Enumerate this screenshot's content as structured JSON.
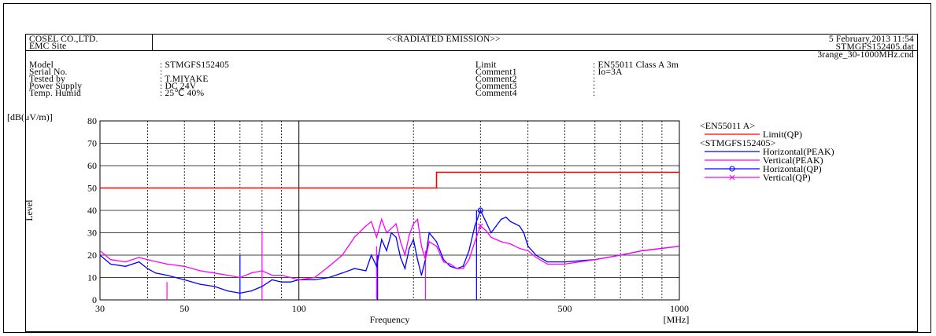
{
  "header": {
    "company": "COSEL CO.,LTD.",
    "site": "EMC Site",
    "title": "<<RADIATED EMISSION>>",
    "datetime": "5 February,2013 11:54",
    "datafile": "STMGFS152405.dat",
    "condfile": "3range_30-1000MHz.cnd"
  },
  "info_left": [
    {
      "label": "Model",
      "value": ": STMGFS152405"
    },
    {
      "label": "Serial No.",
      "value": ":"
    },
    {
      "label": "Tested by",
      "value": ": T.MIYAKE"
    },
    {
      "label": "Power Supply",
      "value": ": DC 24V"
    },
    {
      "label": "Temp. Humid",
      "value": ": 25℃ 40%"
    }
  ],
  "info_right": [
    {
      "label": "Limit",
      "value": ": EN55011 Class A 3m"
    },
    {
      "label": "Comment1",
      "value": ": Io=3A"
    },
    {
      "label": "Comment2",
      "value": ":"
    },
    {
      "label": "Comment3",
      "value": ":"
    },
    {
      "label": "Comment4",
      "value": ":"
    }
  ],
  "chart_data": {
    "type": "line",
    "ylabel_unit": "[dB(μV/m)]",
    "ylabel": "Level",
    "xlabel": "Frequency",
    "xunit": "[MHz]",
    "x_scale": "log",
    "xlim": [
      30,
      1000
    ],
    "ylim": [
      0,
      80
    ],
    "yticks": [
      0,
      10,
      20,
      30,
      40,
      50,
      60,
      70,
      80
    ],
    "xticks": [
      30,
      50,
      100,
      500,
      1000
    ],
    "grid": true,
    "legend": {
      "group1": "<EN55011 A>",
      "group2": "<STMGFS152405>",
      "entries": [
        {
          "name": "Limit(QP)",
          "color": "#ff0000",
          "marker": "line"
        },
        {
          "name": "Horizontal(PEAK)",
          "color": "#0000ff",
          "marker": "line"
        },
        {
          "name": "Vertical(PEAK)",
          "color": "#ff00ff",
          "marker": "line"
        },
        {
          "name": "Horizontal(QP)",
          "color": "#0000ff",
          "marker": "circle"
        },
        {
          "name": "Vertical(QP)",
          "color": "#ff00ff",
          "marker": "x"
        }
      ]
    },
    "limit": {
      "x": [
        30,
        230,
        230,
        1000
      ],
      "y": [
        50,
        50,
        57,
        57
      ]
    },
    "series": [
      {
        "name": "Horizontal(PEAK)",
        "color": "#0000ff",
        "x": [
          30,
          32,
          35,
          38,
          40,
          42,
          45,
          50,
          55,
          60,
          65,
          70,
          75,
          80,
          85,
          90,
          95,
          100,
          110,
          120,
          130,
          140,
          150,
          155,
          160,
          165,
          170,
          175,
          180,
          185,
          190,
          195,
          200,
          205,
          210,
          215,
          220,
          230,
          240,
          250,
          260,
          270,
          280,
          290,
          300,
          310,
          320,
          330,
          340,
          350,
          360,
          370,
          380,
          390,
          400,
          420,
          450,
          500,
          600,
          700,
          800,
          900,
          1000
        ],
        "y": [
          20,
          16,
          15,
          17,
          14,
          12,
          11,
          9,
          7,
          6,
          4,
          3,
          4,
          6,
          9,
          8,
          8,
          9,
          9,
          10,
          12,
          14,
          13,
          20,
          15,
          27,
          22,
          30,
          28,
          19,
          14,
          23,
          27,
          18,
          11,
          18,
          30,
          26,
          18,
          15,
          14,
          15,
          22,
          33,
          40,
          35,
          30,
          33,
          36,
          37,
          35,
          34,
          33,
          30,
          24,
          20,
          17,
          17,
          18,
          20,
          22,
          23,
          24
        ]
      },
      {
        "name": "Vertical(PEAK)",
        "color": "#ff00ff",
        "x": [
          30,
          32,
          35,
          38,
          40,
          45,
          50,
          55,
          60,
          65,
          70,
          75,
          80,
          85,
          90,
          95,
          100,
          110,
          120,
          130,
          140,
          150,
          155,
          160,
          165,
          170,
          175,
          180,
          185,
          190,
          195,
          200,
          205,
          210,
          215,
          220,
          230,
          240,
          250,
          260,
          270,
          280,
          290,
          300,
          310,
          320,
          330,
          340,
          360,
          380,
          400,
          420,
          450,
          500,
          600,
          700,
          800,
          900,
          1000
        ],
        "y": [
          22,
          18,
          17,
          19,
          18,
          16,
          15,
          13,
          12,
          11,
          10,
          12,
          13,
          11,
          11,
          10,
          9,
          10,
          15,
          20,
          28,
          33,
          35,
          28,
          36,
          30,
          32,
          34,
          26,
          20,
          29,
          34,
          36,
          24,
          18,
          26,
          24,
          17,
          16,
          14,
          14,
          18,
          26,
          33,
          31,
          28,
          27,
          26,
          25,
          23,
          22,
          19,
          16,
          16,
          18,
          20,
          22,
          23,
          24
        ]
      }
    ],
    "markers": [
      {
        "series": "Horizontal(QP)",
        "x": 300,
        "y": 40,
        "color": "#0000ff",
        "shape": "circle"
      },
      {
        "series": "Vertical(QP)",
        "x": 300,
        "y": 33,
        "color": "#ff00ff",
        "shape": "x"
      }
    ],
    "spikes": [
      {
        "x": 45,
        "y": 8,
        "color": "#ff00ff"
      },
      {
        "x": 70,
        "y": 20,
        "color": "#0000ff"
      },
      {
        "x": 80,
        "y": 31,
        "color": "#ff00ff"
      },
      {
        "x": 160,
        "y": 24,
        "color": "#ff00ff"
      },
      {
        "x": 161,
        "y": 20,
        "color": "#0000ff"
      },
      {
        "x": 215,
        "y": 22,
        "color": "#ff00ff"
      },
      {
        "x": 293,
        "y": 40,
        "color": "#0000ff"
      }
    ]
  }
}
